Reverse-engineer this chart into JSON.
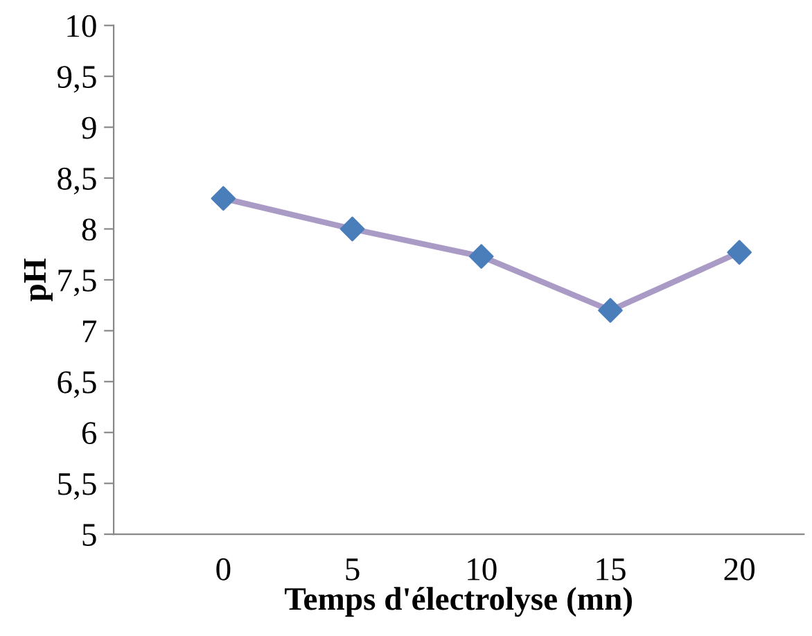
{
  "chart_data": {
    "type": "line",
    "xlabel": "Temps d'électrolyse (mn)",
    "ylabel": "pH",
    "categories": [
      "0",
      "5",
      "10",
      "15",
      "20"
    ],
    "series": [
      {
        "color": "#a99bc6",
        "colors": [
          "#4a7ebb",
          "#4a7ebb",
          "#4a7ebb",
          "#4a7ebb",
          "#4a7ebb"
        ],
        "values": [
          8.3,
          8.0,
          7.73,
          7.2,
          7.77
        ]
      }
    ],
    "ylim": [
      5,
      10
    ],
    "yticks": [
      5,
      {
        "value": 5.5,
        "label": "5,5"
      },
      6,
      {
        "value": 6.5,
        "label": "6,5"
      },
      7,
      {
        "value": 7.5,
        "label": "7,5"
      },
      8,
      {
        "value": 8.5,
        "label": "8,5"
      },
      9,
      {
        "value": 9.5,
        "label": "9,5"
      },
      10
    ],
    "grid": false,
    "legend": false,
    "marker": "diamond",
    "line_style": "solid"
  }
}
